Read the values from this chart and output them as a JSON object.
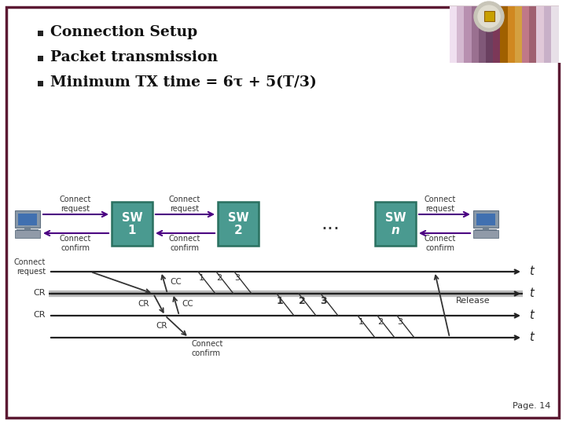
{
  "bg_color": "#ffffff",
  "border_color": "#5c1a33",
  "bullet_items": [
    "Connection Setup",
    "Packet transmission",
    "Minimum TX time = 6τ + 5(T/3)"
  ],
  "sw_box_color": "#4a9a90",
  "sw_box_edge": "#2a7060",
  "arrow_color": "#4b0082",
  "page_label": "Page. 14",
  "deco_colors": [
    "#e8d0e8",
    "#c8a8c8",
    "#b08898",
    "#906878",
    "#d08020",
    "#c87828",
    "#c07090",
    "#a06080",
    "#d0c0d0",
    "#c0b0c0"
  ],
  "badge_outer": "#c8c5b8",
  "badge_inner": "#e0ddd0",
  "badge_sq": "#c8a000"
}
